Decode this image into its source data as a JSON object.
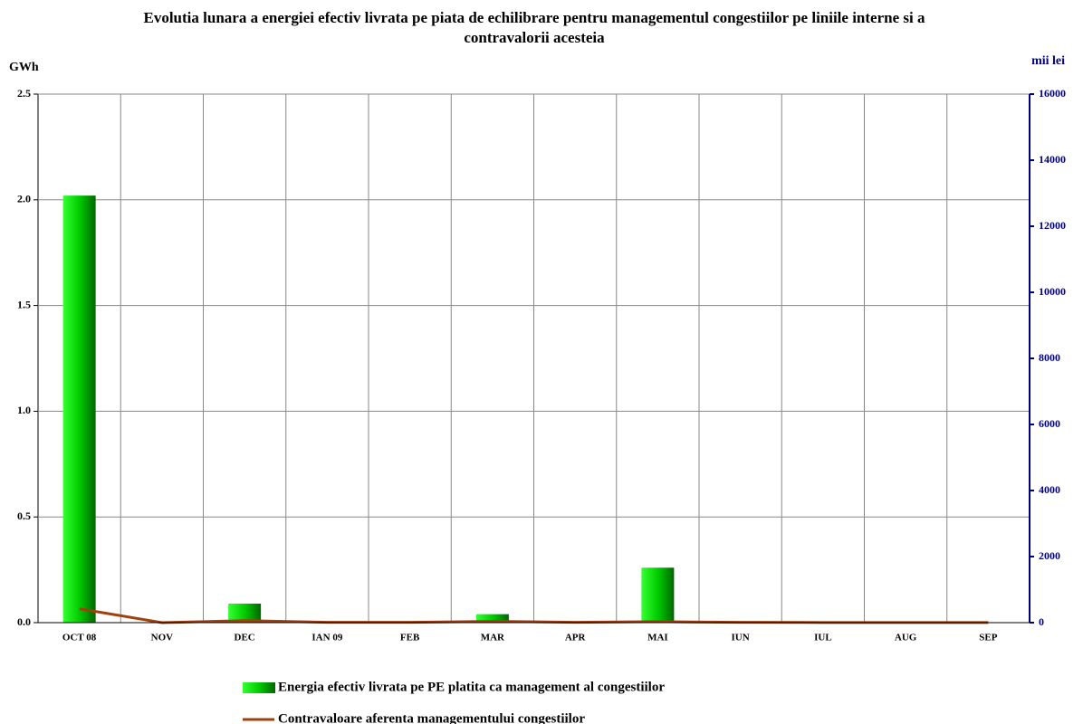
{
  "chart_data": {
    "type": "bar-line",
    "title": "Evolutia lunara a energiei efectiv livrata pe piata de echilibrare pentru managementul congestiilor pe liniile interne si a contravalorii acesteia",
    "y_label": "GWh",
    "y2_label": "mii lei",
    "categories": [
      "OCT 08",
      "NOV",
      "DEC",
      "IAN 09",
      "FEB",
      "MAR",
      "APR",
      "MAI",
      "IUN",
      "IUL",
      "AUG",
      "SEP"
    ],
    "series": [
      {
        "name": "Energia efectiv livrata pe PE platita ca management al congestiilor",
        "color": "#00cc00",
        "type": "bar",
        "values": [
          2.02,
          0,
          0.09,
          0,
          0,
          0.04,
          0,
          0.26,
          0,
          0,
          0,
          0
        ]
      },
      {
        "name": "Contravaloare aferenta managementului congestiilor",
        "color": "#a0410d",
        "type": "line",
        "axis": "y2",
        "values": [
          420,
          0,
          60,
          10,
          10,
          40,
          10,
          30,
          10,
          5,
          5,
          5
        ]
      }
    ],
    "ylim": [
      0,
      2.5
    ],
    "yticks": [
      {
        "value": 0,
        "label": "0.0"
      },
      0.5,
      {
        "value": 1,
        "label": "1.0"
      },
      1.5,
      {
        "value": 2,
        "label": "2.0"
      },
      2.5
    ],
    "y2lim": [
      0,
      16000
    ],
    "y2ticks": [
      0,
      2000,
      4000,
      6000,
      8000,
      10000,
      12000,
      14000,
      16000
    ],
    "y2_color": "#000080",
    "grid": true
  }
}
